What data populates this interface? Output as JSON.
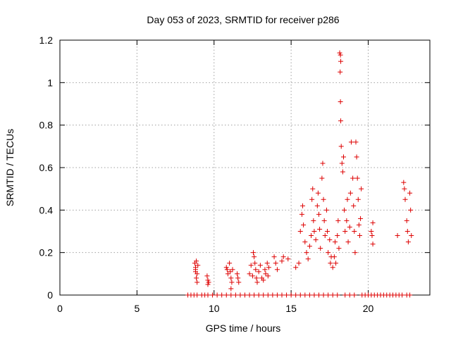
{
  "chart_data": {
    "type": "scatter",
    "title": "Day 053 of 2023, SRMTID for receiver p286",
    "xlabel": "GPS time / hours",
    "ylabel": "SRMTID / TECUs",
    "xlim": [
      0,
      24
    ],
    "ylim": [
      0,
      1.2
    ],
    "xticks": [
      0,
      5,
      10,
      15,
      20
    ],
    "yticks": [
      0,
      0.2,
      0.4,
      0.6,
      0.8,
      1,
      1.2
    ],
    "ytick_labels": [
      "0",
      "0.2",
      "0.4",
      "0.6",
      "0.8",
      "1",
      "1.2"
    ],
    "grid": true,
    "marker": "+",
    "color": "#dd0000",
    "series": [
      {
        "name": "p286",
        "points": [
          [
            8.3,
            0
          ],
          [
            8.5,
            0
          ],
          [
            8.7,
            0
          ],
          [
            8.9,
            0
          ],
          [
            9.2,
            0
          ],
          [
            9.4,
            0
          ],
          [
            9.6,
            0
          ],
          [
            9.9,
            0
          ],
          [
            10.2,
            0
          ],
          [
            10.5,
            0
          ],
          [
            10.8,
            0
          ],
          [
            11.1,
            0
          ],
          [
            11.4,
            0
          ],
          [
            11.7,
            0
          ],
          [
            12.0,
            0
          ],
          [
            12.3,
            0
          ],
          [
            12.6,
            0
          ],
          [
            12.9,
            0
          ],
          [
            13.2,
            0
          ],
          [
            13.5,
            0
          ],
          [
            13.8,
            0
          ],
          [
            14.1,
            0
          ],
          [
            14.4,
            0
          ],
          [
            14.7,
            0
          ],
          [
            15.0,
            0
          ],
          [
            15.3,
            0
          ],
          [
            15.6,
            0
          ],
          [
            15.9,
            0
          ],
          [
            16.2,
            0
          ],
          [
            16.5,
            0
          ],
          [
            16.8,
            0
          ],
          [
            17.1,
            0
          ],
          [
            17.4,
            0
          ],
          [
            17.7,
            0
          ],
          [
            18.0,
            0
          ],
          [
            18.5,
            0
          ],
          [
            18.8,
            0
          ],
          [
            19.1,
            0
          ],
          [
            19.6,
            0
          ],
          [
            19.8,
            0
          ],
          [
            20.0,
            0
          ],
          [
            20.2,
            0
          ],
          [
            20.4,
            0
          ],
          [
            20.6,
            0
          ],
          [
            20.8,
            0
          ],
          [
            21.0,
            0
          ],
          [
            21.2,
            0
          ],
          [
            21.4,
            0
          ],
          [
            21.6,
            0
          ],
          [
            21.8,
            0
          ],
          [
            22.0,
            0
          ],
          [
            22.2,
            0
          ],
          [
            22.5,
            0
          ],
          [
            22.7,
            0
          ],
          [
            8.75,
            0.15
          ],
          [
            8.8,
            0.13
          ],
          [
            8.85,
            0.16
          ],
          [
            8.8,
            0.12
          ],
          [
            8.9,
            0.1
          ],
          [
            8.95,
            0.14
          ],
          [
            8.85,
            0.08
          ],
          [
            8.9,
            0.06
          ],
          [
            8.8,
            0.11
          ],
          [
            9.55,
            0.09
          ],
          [
            9.6,
            0.07
          ],
          [
            9.65,
            0.06
          ],
          [
            9.6,
            0.05
          ],
          [
            10.8,
            0.13
          ],
          [
            10.85,
            0.12
          ],
          [
            10.9,
            0.1
          ],
          [
            11.0,
            0.15
          ],
          [
            11.05,
            0.11
          ],
          [
            11.1,
            0.08
          ],
          [
            11.15,
            0.06
          ],
          [
            11.1,
            0.03
          ],
          [
            11.2,
            0.12
          ],
          [
            11.5,
            0.1
          ],
          [
            11.55,
            0.08
          ],
          [
            11.6,
            0.06
          ],
          [
            12.3,
            0.1
          ],
          [
            12.4,
            0.14
          ],
          [
            12.5,
            0.09
          ],
          [
            12.55,
            0.2
          ],
          [
            12.6,
            0.18
          ],
          [
            12.65,
            0.15
          ],
          [
            12.7,
            0.12
          ],
          [
            12.75,
            0.08
          ],
          [
            12.8,
            0.06
          ],
          [
            12.9,
            0.11
          ],
          [
            13.0,
            0.14
          ],
          [
            13.1,
            0.08
          ],
          [
            13.2,
            0.07
          ],
          [
            13.3,
            0.12
          ],
          [
            13.35,
            0.1
          ],
          [
            13.45,
            0.15
          ],
          [
            13.5,
            0.09
          ],
          [
            13.55,
            0.13
          ],
          [
            13.9,
            0.18
          ],
          [
            14.0,
            0.15
          ],
          [
            14.1,
            0.12
          ],
          [
            14.4,
            0.16
          ],
          [
            14.5,
            0.18
          ],
          [
            14.8,
            0.17
          ],
          [
            15.3,
            0.13
          ],
          [
            15.5,
            0.15
          ],
          [
            15.6,
            0.3
          ],
          [
            15.7,
            0.38
          ],
          [
            15.75,
            0.42
          ],
          [
            15.8,
            0.33
          ],
          [
            15.9,
            0.25
          ],
          [
            16.0,
            0.2
          ],
          [
            16.1,
            0.17
          ],
          [
            16.2,
            0.23
          ],
          [
            16.3,
            0.28
          ],
          [
            16.35,
            0.45
          ],
          [
            16.4,
            0.5
          ],
          [
            16.45,
            0.35
          ],
          [
            16.5,
            0.3
          ],
          [
            16.6,
            0.26
          ],
          [
            16.7,
            0.42
          ],
          [
            16.75,
            0.48
          ],
          [
            16.8,
            0.38
          ],
          [
            16.85,
            0.31
          ],
          [
            16.9,
            0.22
          ],
          [
            17.0,
            0.55
          ],
          [
            17.05,
            0.62
          ],
          [
            17.1,
            0.45
          ],
          [
            17.15,
            0.35
          ],
          [
            17.2,
            0.28
          ],
          [
            17.3,
            0.4
          ],
          [
            17.35,
            0.3
          ],
          [
            17.4,
            0.2
          ],
          [
            17.5,
            0.26
          ],
          [
            17.55,
            0.15
          ],
          [
            17.6,
            0.18
          ],
          [
            17.7,
            0.13
          ],
          [
            17.8,
            0.18
          ],
          [
            17.85,
            0.25
          ],
          [
            17.9,
            0.15
          ],
          [
            18.0,
            0.28
          ],
          [
            18.05,
            0.35
          ],
          [
            18.1,
            0.22
          ],
          [
            18.15,
            1.14
          ],
          [
            18.2,
            1.13
          ],
          [
            18.22,
            1.1
          ],
          [
            18.18,
            1.05
          ],
          [
            18.2,
            0.91
          ],
          [
            18.22,
            0.82
          ],
          [
            18.25,
            0.7
          ],
          [
            18.3,
            0.62
          ],
          [
            18.35,
            0.58
          ],
          [
            18.4,
            0.65
          ],
          [
            18.45,
            0.4
          ],
          [
            18.5,
            0.3
          ],
          [
            18.6,
            0.35
          ],
          [
            18.65,
            0.45
          ],
          [
            18.7,
            0.25
          ],
          [
            18.8,
            0.32
          ],
          [
            18.85,
            0.48
          ],
          [
            18.9,
            0.72
          ],
          [
            19.0,
            0.55
          ],
          [
            19.05,
            0.42
          ],
          [
            19.1,
            0.3
          ],
          [
            19.15,
            0.2
          ],
          [
            19.2,
            0.72
          ],
          [
            19.25,
            0.65
          ],
          [
            19.3,
            0.55
          ],
          [
            19.35,
            0.45
          ],
          [
            19.4,
            0.33
          ],
          [
            19.45,
            0.28
          ],
          [
            19.5,
            0.36
          ],
          [
            19.55,
            0.5
          ],
          [
            20.2,
            0.3
          ],
          [
            20.25,
            0.28
          ],
          [
            20.3,
            0.34
          ],
          [
            20.3,
            0.24
          ],
          [
            21.9,
            0.28
          ],
          [
            22.3,
            0.53
          ],
          [
            22.35,
            0.5
          ],
          [
            22.4,
            0.45
          ],
          [
            22.5,
            0.35
          ],
          [
            22.55,
            0.3
          ],
          [
            22.6,
            0.25
          ],
          [
            22.7,
            0.48
          ],
          [
            22.75,
            0.4
          ],
          [
            22.8,
            0.28
          ]
        ]
      }
    ]
  }
}
